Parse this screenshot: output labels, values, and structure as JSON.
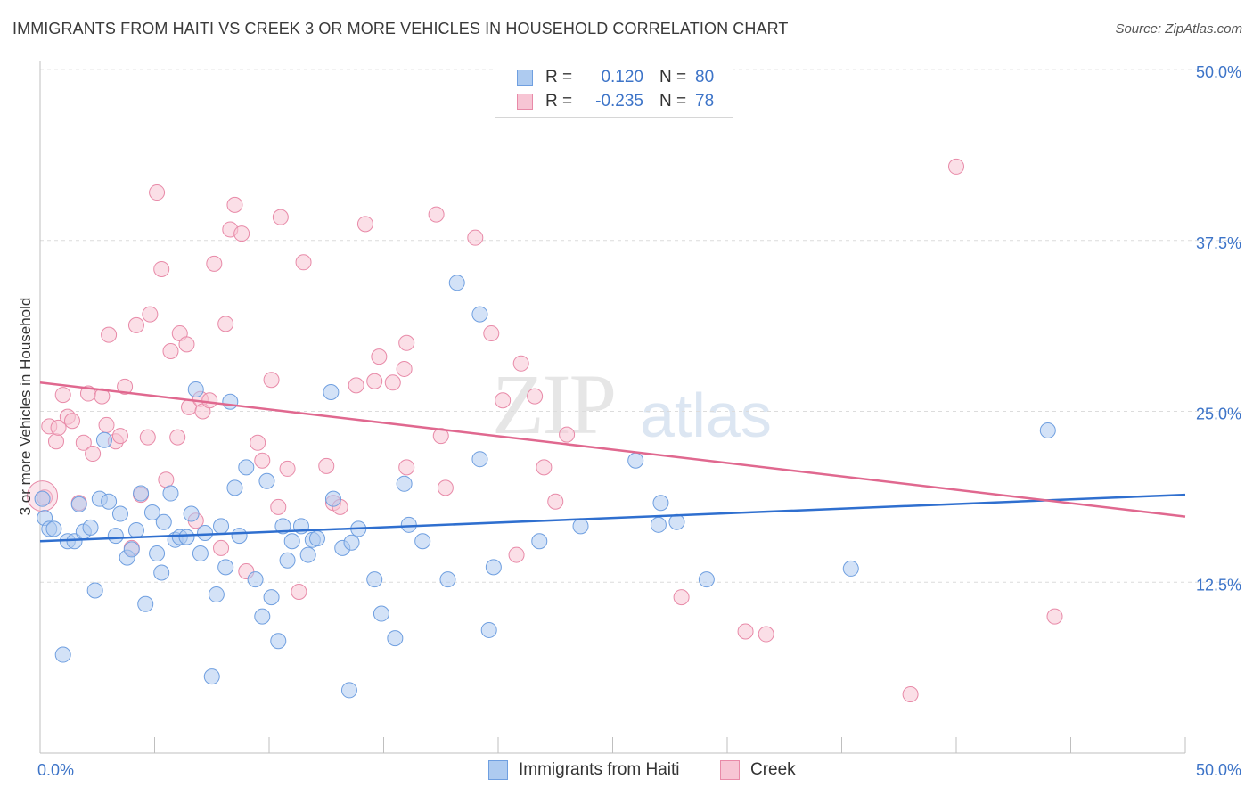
{
  "title": "IMMIGRANTS FROM HAITI VS CREEK 3 OR MORE VEHICLES IN HOUSEHOLD CORRELATION CHART",
  "source": "Source: ZipAtlas.com",
  "watermark": {
    "zip": "ZIP",
    "atlas": "atlas"
  },
  "legend": {
    "rows": [
      {
        "r_label": "R =",
        "r_value": "0.120",
        "n_label": "N =",
        "n_value": "80",
        "color": "#aecbf0",
        "border": "#6f9fe0"
      },
      {
        "r_label": "R =",
        "r_value": "-0.235",
        "n_label": "N =",
        "n_value": "78",
        "color": "#f7c5d4",
        "border": "#e88aa8"
      }
    ]
  },
  "bottom_legend": [
    {
      "label": "Immigrants from Haiti",
      "color": "#aecbf0",
      "border": "#6f9fe0"
    },
    {
      "label": "Creek",
      "color": "#f7c5d4",
      "border": "#e88aa8"
    }
  ],
  "chart_data": {
    "type": "scatter",
    "title": "IMMIGRANTS FROM HAITI VS CREEK 3 OR MORE VEHICLES IN HOUSEHOLD CORRELATION CHART",
    "xlabel": "",
    "ylabel": "3 or more Vehicles in Household",
    "xlim": [
      0,
      50
    ],
    "ylim": [
      0,
      50
    ],
    "x_tick_labels": [
      "0.0%",
      "50.0%"
    ],
    "y_ticks": [
      12.5,
      25.0,
      37.5,
      50.0
    ],
    "y_tick_labels": [
      "12.5%",
      "25.0%",
      "37.5%",
      "50.0%"
    ],
    "grid": true,
    "legend_position": "top-center",
    "series": [
      {
        "name": "Immigrants from Haiti",
        "color": "#6f9fe0",
        "trend": {
          "x": [
            0,
            50
          ],
          "y": [
            15.5,
            18.9
          ]
        },
        "points": [
          [
            0.2,
            17.2
          ],
          [
            0.4,
            16.4
          ],
          [
            0.6,
            16.4
          ],
          [
            1.0,
            7.2
          ],
          [
            1.2,
            15.5
          ],
          [
            1.5,
            15.5
          ],
          [
            1.7,
            18.2
          ],
          [
            1.9,
            16.2
          ],
          [
            2.2,
            16.5
          ],
          [
            2.4,
            11.9
          ],
          [
            2.6,
            18.6
          ],
          [
            2.8,
            22.9
          ],
          [
            3.0,
            18.4
          ],
          [
            3.3,
            15.9
          ],
          [
            3.5,
            17.5
          ],
          [
            3.8,
            14.3
          ],
          [
            4.0,
            14.9
          ],
          [
            4.2,
            16.3
          ],
          [
            4.4,
            19.0
          ],
          [
            4.6,
            10.9
          ],
          [
            4.9,
            17.6
          ],
          [
            5.1,
            14.6
          ],
          [
            5.3,
            13.2
          ],
          [
            5.4,
            16.9
          ],
          [
            5.7,
            19.0
          ],
          [
            5.9,
            15.6
          ],
          [
            6.1,
            15.8
          ],
          [
            6.4,
            15.8
          ],
          [
            6.6,
            17.5
          ],
          [
            6.8,
            26.6
          ],
          [
            7.0,
            14.6
          ],
          [
            7.2,
            16.1
          ],
          [
            7.5,
            5.6
          ],
          [
            7.7,
            11.6
          ],
          [
            7.9,
            16.6
          ],
          [
            8.1,
            13.6
          ],
          [
            8.3,
            25.7
          ],
          [
            8.5,
            19.4
          ],
          [
            8.7,
            15.9
          ],
          [
            9.0,
            20.9
          ],
          [
            9.4,
            12.7
          ],
          [
            9.7,
            10.0
          ],
          [
            9.9,
            19.9
          ],
          [
            10.1,
            11.4
          ],
          [
            10.4,
            8.2
          ],
          [
            10.6,
            16.6
          ],
          [
            10.8,
            14.1
          ],
          [
            11.0,
            15.5
          ],
          [
            11.4,
            16.6
          ],
          [
            11.7,
            14.5
          ],
          [
            11.9,
            15.6
          ],
          [
            12.1,
            15.7
          ],
          [
            12.7,
            26.4
          ],
          [
            12.8,
            18.6
          ],
          [
            13.2,
            15.0
          ],
          [
            13.6,
            15.4
          ],
          [
            13.5,
            4.6
          ],
          [
            13.9,
            16.4
          ],
          [
            14.6,
            12.7
          ],
          [
            14.9,
            10.2
          ],
          [
            15.5,
            8.4
          ],
          [
            15.9,
            19.7
          ],
          [
            16.1,
            16.7
          ],
          [
            16.7,
            15.5
          ],
          [
            17.8,
            12.7
          ],
          [
            18.2,
            34.4
          ],
          [
            19.2,
            32.1
          ],
          [
            19.2,
            21.5
          ],
          [
            19.6,
            9.0
          ],
          [
            19.8,
            13.6
          ],
          [
            21.8,
            15.5
          ],
          [
            23.6,
            16.6
          ],
          [
            26.0,
            21.4
          ],
          [
            27.0,
            16.7
          ],
          [
            27.1,
            18.3
          ],
          [
            27.8,
            16.9
          ],
          [
            29.1,
            12.7
          ],
          [
            35.4,
            13.5
          ],
          [
            44.0,
            23.6
          ],
          [
            0.1,
            18.6
          ]
        ]
      },
      {
        "name": "Creek",
        "color": "#e88aa8",
        "trend": {
          "x": [
            0,
            50
          ],
          "y": [
            27.1,
            17.3
          ]
        },
        "points": [
          [
            0.2,
            18.7
          ],
          [
            0.4,
            23.9
          ],
          [
            0.7,
            22.8
          ],
          [
            0.8,
            23.8
          ],
          [
            1.0,
            26.2
          ],
          [
            1.2,
            24.6
          ],
          [
            1.4,
            24.3
          ],
          [
            1.7,
            18.3
          ],
          [
            1.9,
            22.7
          ],
          [
            2.1,
            26.3
          ],
          [
            2.3,
            21.9
          ],
          [
            2.7,
            26.1
          ],
          [
            2.9,
            24.0
          ],
          [
            3.0,
            30.6
          ],
          [
            3.3,
            22.8
          ],
          [
            3.5,
            23.2
          ],
          [
            3.7,
            26.8
          ],
          [
            4.0,
            15.0
          ],
          [
            4.2,
            31.3
          ],
          [
            4.4,
            18.9
          ],
          [
            4.7,
            23.1
          ],
          [
            4.8,
            32.1
          ],
          [
            5.1,
            41.0
          ],
          [
            5.3,
            35.4
          ],
          [
            5.5,
            20.0
          ],
          [
            5.7,
            29.4
          ],
          [
            6.0,
            23.1
          ],
          [
            6.1,
            30.7
          ],
          [
            6.4,
            29.9
          ],
          [
            6.5,
            25.3
          ],
          [
            6.8,
            17.0
          ],
          [
            7.0,
            25.9
          ],
          [
            7.1,
            25.0
          ],
          [
            7.4,
            25.8
          ],
          [
            7.6,
            35.8
          ],
          [
            7.9,
            15.0
          ],
          [
            8.1,
            31.4
          ],
          [
            8.3,
            38.3
          ],
          [
            8.5,
            40.1
          ],
          [
            8.8,
            38.0
          ],
          [
            9.0,
            13.3
          ],
          [
            9.5,
            22.7
          ],
          [
            9.7,
            21.4
          ],
          [
            10.1,
            27.3
          ],
          [
            10.4,
            18.0
          ],
          [
            10.5,
            39.2
          ],
          [
            10.8,
            20.8
          ],
          [
            11.3,
            11.8
          ],
          [
            11.5,
            35.9
          ],
          [
            12.5,
            21.0
          ],
          [
            12.8,
            18.3
          ],
          [
            13.1,
            18.0
          ],
          [
            13.8,
            26.9
          ],
          [
            14.2,
            38.7
          ],
          [
            14.6,
            27.2
          ],
          [
            14.8,
            29.0
          ],
          [
            15.4,
            27.1
          ],
          [
            15.9,
            28.1
          ],
          [
            16.0,
            30.0
          ],
          [
            16.0,
            20.9
          ],
          [
            17.3,
            39.4
          ],
          [
            17.5,
            23.2
          ],
          [
            17.7,
            19.4
          ],
          [
            19.0,
            37.7
          ],
          [
            19.7,
            30.7
          ],
          [
            20.2,
            25.8
          ],
          [
            20.8,
            14.5
          ],
          [
            21.0,
            28.5
          ],
          [
            21.6,
            26.1
          ],
          [
            22.0,
            20.9
          ],
          [
            22.5,
            18.4
          ],
          [
            23.0,
            23.3
          ],
          [
            28.0,
            11.4
          ],
          [
            30.8,
            8.9
          ],
          [
            31.7,
            8.7
          ],
          [
            38.0,
            4.3
          ],
          [
            40.0,
            42.9
          ],
          [
            44.3,
            10.0
          ]
        ]
      }
    ]
  }
}
